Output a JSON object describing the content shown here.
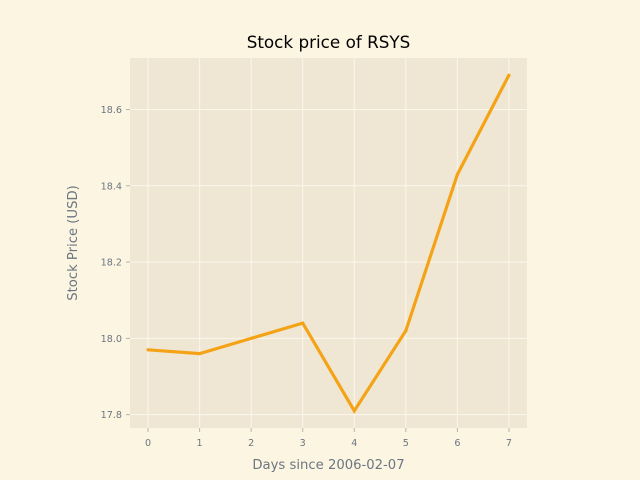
{
  "chart_data": {
    "type": "line",
    "title": "Stock price of RSYS",
    "xlabel": "Days since 2006-02-07",
    "ylabel": "Stock Price (USD)",
    "x": [
      0,
      1,
      2,
      3,
      4,
      5,
      6,
      7
    ],
    "series": [
      {
        "values": [
          17.97,
          17.96,
          18.0,
          18.04,
          17.81,
          18.02,
          18.43,
          18.69
        ]
      }
    ],
    "xlim": [
      -0.35,
      7.35
    ],
    "ylim": [
      17.765,
      18.735
    ],
    "xticks": [
      0,
      1,
      2,
      3,
      4,
      5,
      6,
      7
    ],
    "yticks": [
      17.8,
      18.0,
      18.2,
      18.4,
      18.6
    ],
    "ytick_labels": [
      "17.8",
      "18.0",
      "18.2",
      "18.4",
      "18.6"
    ],
    "grid": true
  },
  "colors": {
    "figure_background": "#fcf5e2",
    "plot_background": "#efe7d4",
    "grid": "#fbf7ec",
    "line": "#f5a316",
    "tick_text": "#6b7681",
    "title_text": "#000000"
  }
}
